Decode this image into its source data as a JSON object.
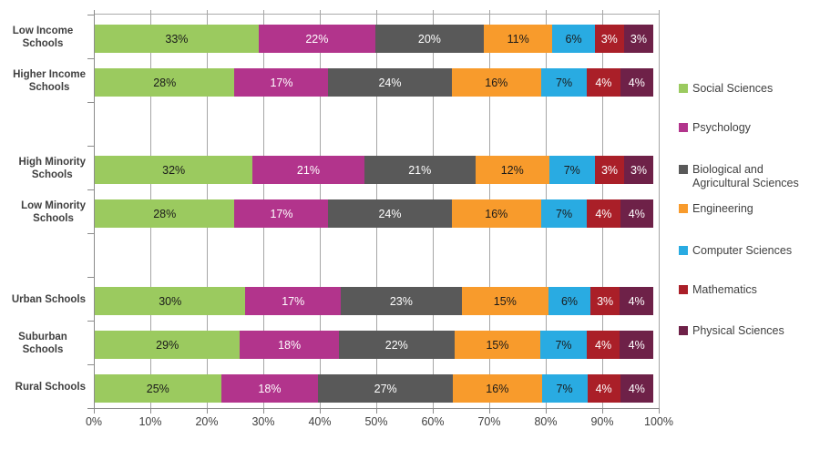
{
  "chart_data": {
    "type": "bar",
    "orientation": "horizontal",
    "stacked": true,
    "grid": true,
    "legend_position": "right",
    "value_suffix": "%",
    "xlim": [
      0,
      100
    ],
    "x_ticks": [
      "0%",
      "10%",
      "20%",
      "30%",
      "40%",
      "50%",
      "60%",
      "70%",
      "80%",
      "90%",
      "100%"
    ],
    "categories": [
      "Low Income Schools",
      "Higher Income\nSchools",
      "High Minority\nSchools",
      "Low Minority\nSchools",
      "Urban Schools",
      "Suburban Schools",
      "Rural Schools"
    ],
    "series": [
      {
        "name": "Social Sciences",
        "color": "#9bca5f",
        "label_color": "#1a1a1a",
        "values": [
          33,
          28,
          32,
          28,
          30,
          29,
          25
        ]
      },
      {
        "name": "Psychology",
        "color": "#b2348c",
        "label_color": "#ffffff",
        "values": [
          22,
          17,
          21,
          17,
          17,
          18,
          18
        ]
      },
      {
        "name": "Biological and Agricultural Sciences",
        "color": "#595959",
        "label_color": "#ffffff",
        "values": [
          20,
          24,
          21,
          24,
          23,
          22,
          27
        ]
      },
      {
        "name": "Engineering",
        "color": "#f89b2c",
        "label_color": "#1a1a1a",
        "values": [
          11,
          16,
          12,
          16,
          15,
          15,
          16
        ]
      },
      {
        "name": "Computer Sciences",
        "color": "#29abe2",
        "label_color": "#1a1a1a",
        "values": [
          6,
          7,
          7,
          7,
          6,
          7,
          7
        ]
      },
      {
        "name": "Mathematics",
        "color": "#aa1f28",
        "label_color": "#ffffff",
        "values": [
          3,
          4,
          3,
          4,
          3,
          4,
          4
        ]
      },
      {
        "name": "Physical Sciences",
        "color": "#6e2148",
        "label_color": "#ffffff",
        "values": [
          3,
          4,
          3,
          4,
          4,
          4,
          4
        ]
      }
    ]
  }
}
